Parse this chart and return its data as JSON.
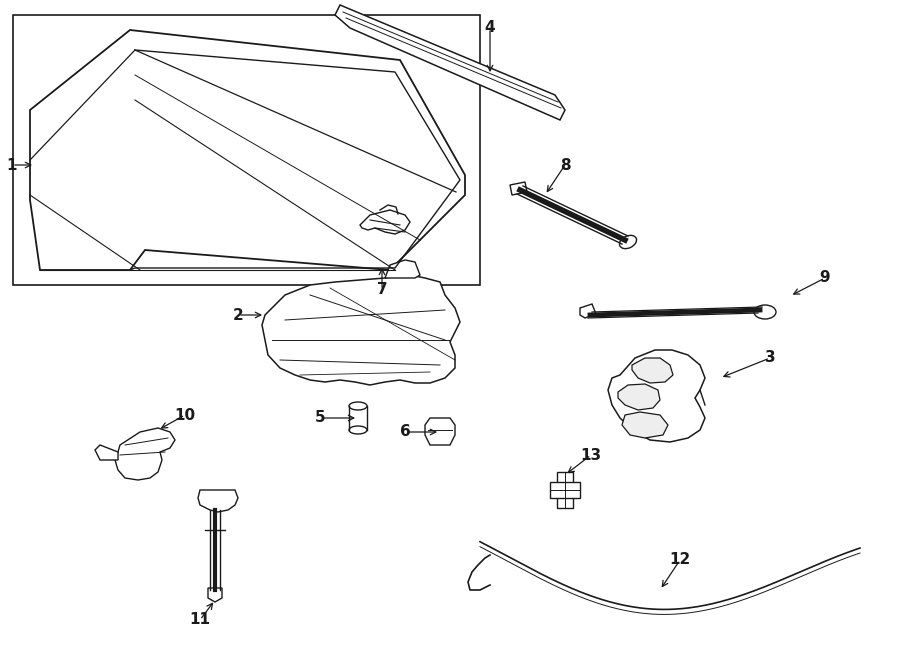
{
  "bg_color": "#ffffff",
  "line_color": "#1a1a1a",
  "lw": 1.0,
  "font_size": 11,
  "fig_w": 9.0,
  "fig_h": 6.61,
  "dpi": 100
}
